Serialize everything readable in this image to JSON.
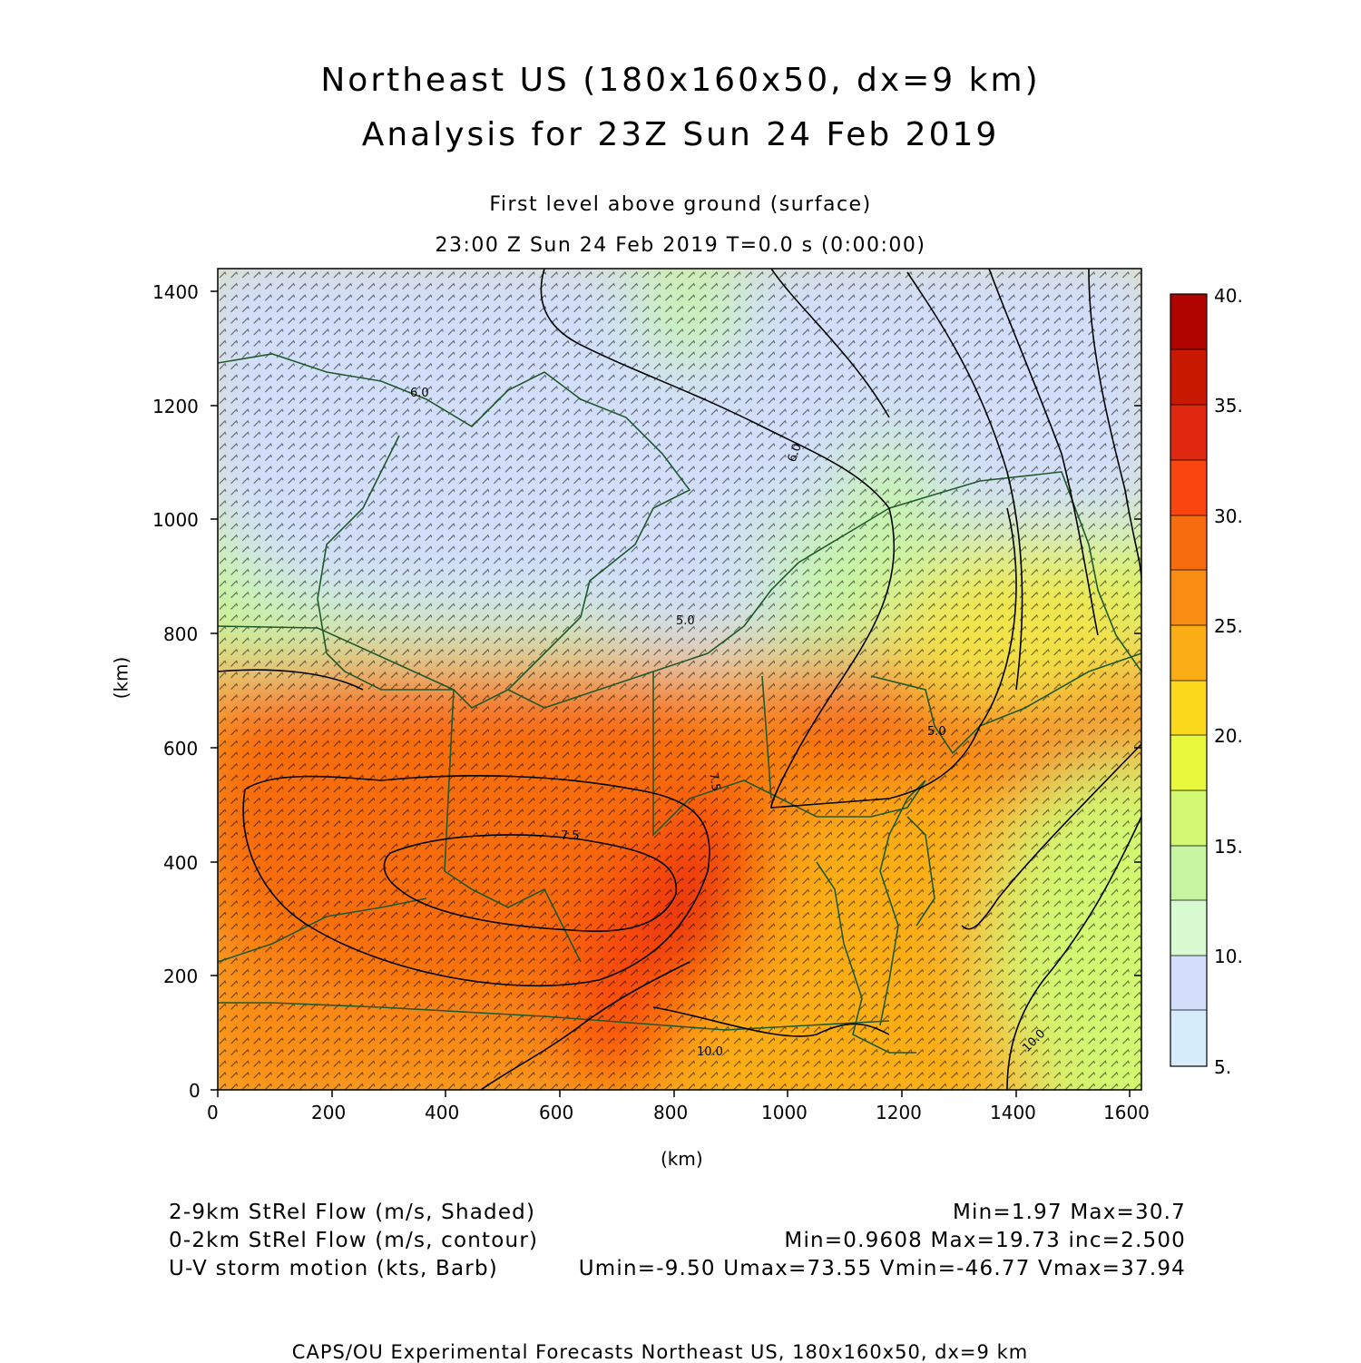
{
  "header": {
    "title_line1": "Northeast US (180x160x50, dx=9 km)",
    "title_line2": "Analysis for 23Z Sun 24 Feb 2019",
    "level_label": "First level above ground (surface)",
    "time_label": "23:00 Z Sun 24 Feb 2019    T=0.0 s (0:00:00)"
  },
  "axes": {
    "x_label": "(km)",
    "y_label": "(km)",
    "x_ticks": [
      "0",
      "200",
      "400",
      "600",
      "800",
      "1000",
      "1200",
      "1400",
      "1600"
    ],
    "y_ticks": [
      "0",
      "200",
      "400",
      "600",
      "800",
      "1000",
      "1200",
      "1400"
    ],
    "x_range": [
      0,
      1620
    ],
    "y_range": [
      0,
      1440
    ]
  },
  "colorbar": {
    "labels": [
      "40.",
      "35.",
      "30.",
      "25.",
      "20.",
      "15.",
      "10.",
      "5."
    ],
    "range": [
      5,
      40
    ],
    "colors_bottom_to_top": [
      "#d6ecfa",
      "#d2defa",
      "#d9fbd2",
      "#c6f5a2",
      "#d2f772",
      "#e8f83a",
      "#fbd81c",
      "#fbad16",
      "#f98d14",
      "#f76c0c",
      "#f94610",
      "#e02810",
      "#c81800",
      "#b00400"
    ]
  },
  "contour_labels": [
    "6.0",
    "6.0",
    "5.0",
    "7.5",
    "10.0",
    "5.0",
    "10.0",
    "7.5"
  ],
  "legend": {
    "line1_left": "2-9km StRel Flow (m/s, Shaded)",
    "line1_right": "Min=1.97 Max=30.7",
    "line2_left": "0-2km StRel Flow (m/s, contour)",
    "line2_right": "Min=0.9608 Max=19.73 inc=2.500",
    "line3_left": "U-V storm motion (kts, Barb)",
    "line3_right": "Umin=-9.50 Umax=73.55 Vmin=-46.77 Vmax=37.94"
  },
  "footer": "CAPS/OU Experimental Forecasts  Northeast US, 180x160x50, dx=9 km",
  "colors": {
    "coastline": "#1f5a2a",
    "contour": "#000000",
    "barb": "#000000"
  }
}
